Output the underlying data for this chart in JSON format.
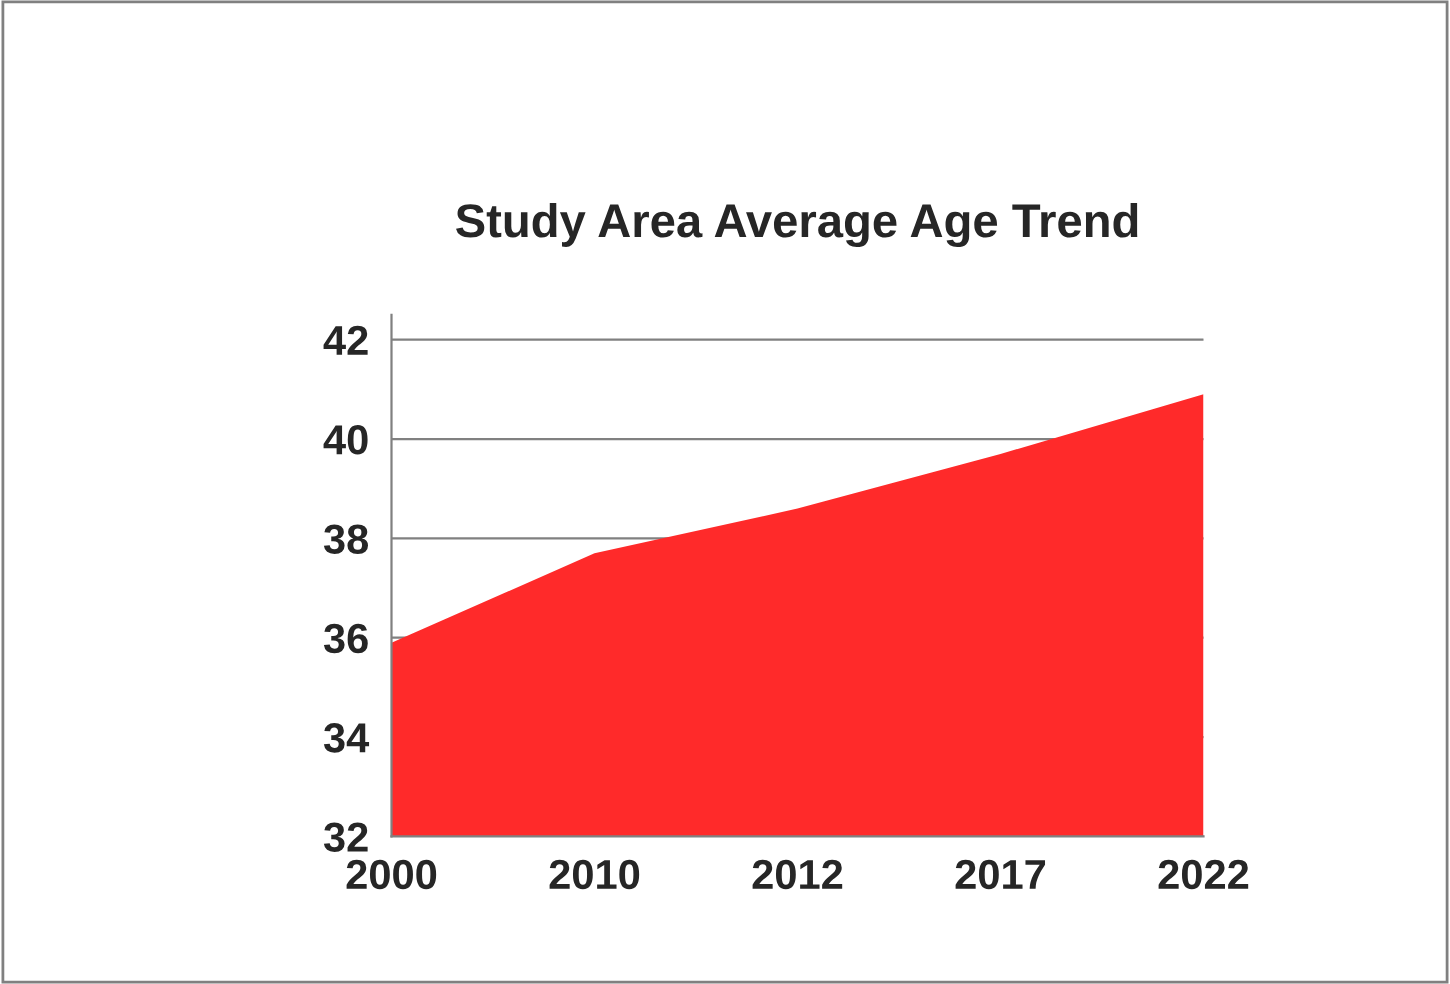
{
  "chart_data": {
    "type": "area",
    "title": "Study Area Average Age Trend",
    "categories": [
      "2000",
      "2010",
      "2012",
      "2017",
      "2022"
    ],
    "series": [
      {
        "color": "#ff2a2a",
        "values": [
          35.9,
          37.7,
          38.6,
          39.7,
          40.9
        ]
      }
    ],
    "ylim": [
      32,
      42.5
    ],
    "yticks": [
      32,
      34,
      36,
      38,
      40,
      42
    ],
    "grid": "y",
    "legend": false
  }
}
